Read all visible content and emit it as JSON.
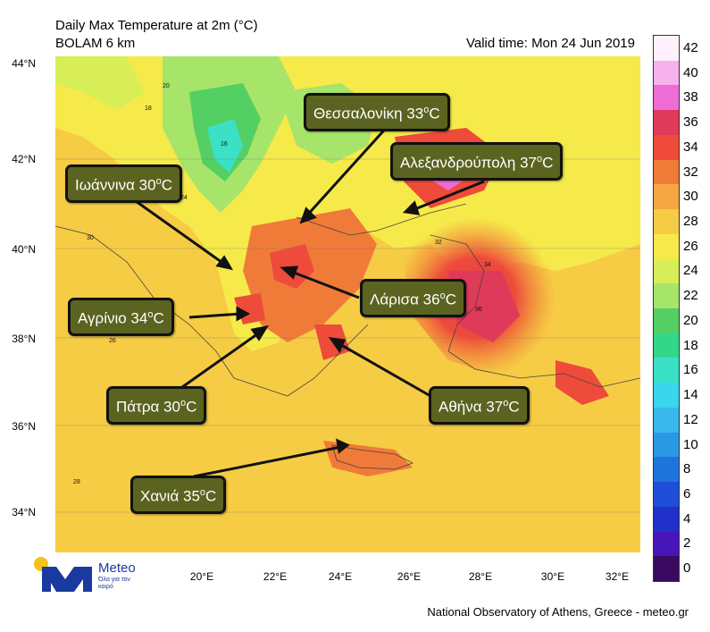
{
  "header": {
    "title_line1": "Daily Max Temperature at 2m (°C)",
    "title_line2": "BOLAM 6 km",
    "valid_time": "Valid time: Mon 24 Jun 2019"
  },
  "axes": {
    "lat_labels": [
      "44°N",
      "42°N",
      "40°N",
      "38°N",
      "36°N",
      "34°N"
    ],
    "lon_labels": [
      "20°E",
      "22°E",
      "24°E",
      "26°E",
      "28°E",
      "30°E",
      "32°E"
    ]
  },
  "legend": {
    "values": [
      "42",
      "40",
      "38",
      "36",
      "34",
      "32",
      "30",
      "28",
      "26",
      "24",
      "22",
      "20",
      "18",
      "16",
      "14",
      "12",
      "10",
      "8",
      "6",
      "4",
      "2",
      "0"
    ],
    "colors": [
      "#fff0fb",
      "#f7b2ee",
      "#ee6cd6",
      "#e03a5a",
      "#ee4b3a",
      "#f07a38",
      "#f6a640",
      "#f6cc44",
      "#f6ea4a",
      "#d8ee56",
      "#a7e46a",
      "#54cf64",
      "#34d68a",
      "#3ae1c6",
      "#3ad7ec",
      "#38b8ec",
      "#2b98e6",
      "#1f74dc",
      "#1f4fd8",
      "#2130c8",
      "#4616b8",
      "#3a0a60"
    ]
  },
  "callouts": {
    "thessaloniki": {
      "name": "Θεσσαλονίκη 33",
      "unit": "o",
      "suffix": "C"
    },
    "alexandroupoli": {
      "name": "Αλεξανδρούπολη 37",
      "unit": "o",
      "suffix": "C"
    },
    "ioannina": {
      "name": "Ιωάννινα  30",
      "unit": "o",
      "suffix": "C"
    },
    "larisa": {
      "name": "Λάρισα 36",
      "unit": "o",
      "suffix": "C"
    },
    "agrinio": {
      "name": "Αγρίνιο 34",
      "unit": "o",
      "suffix": "C"
    },
    "patra": {
      "name": "Πάτρα 30",
      "unit": "o",
      "suffix": "C"
    },
    "athina": {
      "name": "Αθήνα 37",
      "unit": "o",
      "suffix": "C"
    },
    "chania": {
      "name": "Χανιά 35",
      "unit": "o",
      "suffix": "C"
    }
  },
  "contour_labels": [
    "20",
    "18",
    "16",
    "22",
    "24",
    "26",
    "28",
    "30",
    "32",
    "34",
    "36"
  ],
  "logo": {
    "name": "Meteo",
    "tagline": "Όλα για τον καιρό"
  },
  "footer": "National Observatory of Athens, Greece - meteo.gr"
}
